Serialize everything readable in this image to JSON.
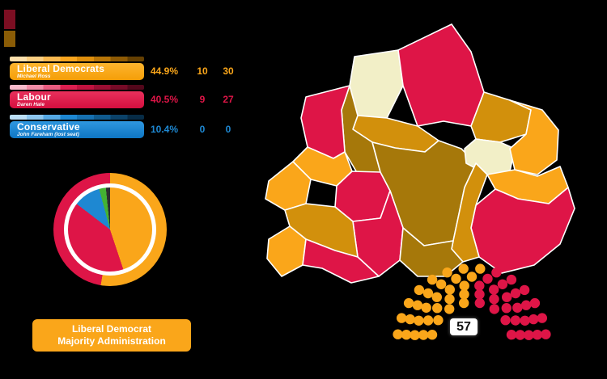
{
  "background_color": "#000000",
  "legend": {
    "parties": [
      {
        "name": "Liberal Democrats",
        "leader": "Michael Ross",
        "color": "#FAA61A",
        "share": "44.9%",
        "seats_won": "10",
        "seats_total": "30"
      },
      {
        "name": "Labour",
        "leader": "Daren Hale",
        "color": "#DE1547",
        "share": "40.5%",
        "seats_won": "9",
        "seats_total": "27"
      },
      {
        "name": "Conservative",
        "leader": "John Fareham (lost seat)",
        "color": "#1E88D2",
        "share": "10.4%",
        "seats_won": "0",
        "seats_total": "0"
      }
    ]
  },
  "admin_box": {
    "line1": "Liberal Democrat",
    "line2": "Majority Administration",
    "color": "#FAA61A"
  },
  "parliament_label": "57",
  "chart_data": [
    {
      "type": "pie",
      "name": "vote-share-inner-pie",
      "title": "",
      "legend_position": "none",
      "slices": [
        {
          "label": "Liberal Democrats",
          "value": 44.9,
          "color": "#FAA61A"
        },
        {
          "label": "Labour",
          "value": 40.5,
          "color": "#DE1547"
        },
        {
          "label": "Conservative",
          "value": 10.4,
          "color": "#1E88D2"
        },
        {
          "label": "",
          "value": 2.6,
          "color": "#44B233"
        },
        {
          "label": "",
          "value": 1.6,
          "color": "#2F2F2F"
        }
      ]
    },
    {
      "type": "pie",
      "name": "seats-outer-ring",
      "title": "",
      "slices": [
        {
          "label": "Liberal Democrats",
          "value": 30,
          "color": "#FAA61A"
        },
        {
          "label": "Labour",
          "value": 27,
          "color": "#DE1547"
        }
      ]
    },
    {
      "type": "parliament",
      "name": "seat-diagram",
      "total": 57,
      "center_label": "57",
      "groups": [
        {
          "label": "Liberal Democrats",
          "seats": 30,
          "color": "#FAA61A"
        },
        {
          "label": "Labour",
          "seats": 27,
          "color": "#DE1547"
        }
      ]
    }
  ],
  "map": {
    "palette": {
      "ld": "#FAA61A",
      "ld_dark": "#D2900C",
      "ld_darker": "#A6780A",
      "lab": "#DE1547",
      "none": "#F2EFC7"
    },
    "regions": [
      "none",
      "lab",
      "ld_dark",
      "ld_darker",
      "lab",
      "ld",
      "ld",
      "lab",
      "ld_darker",
      "ld_dark",
      "none",
      "ld",
      "ld",
      "lab",
      "ld_dark",
      "lab",
      "ld_darker",
      "ld_dark",
      "ld",
      "lab"
    ]
  },
  "swatches": [
    {
      "color": "#7C0E22"
    },
    {
      "color": "#8A5C06"
    }
  ]
}
